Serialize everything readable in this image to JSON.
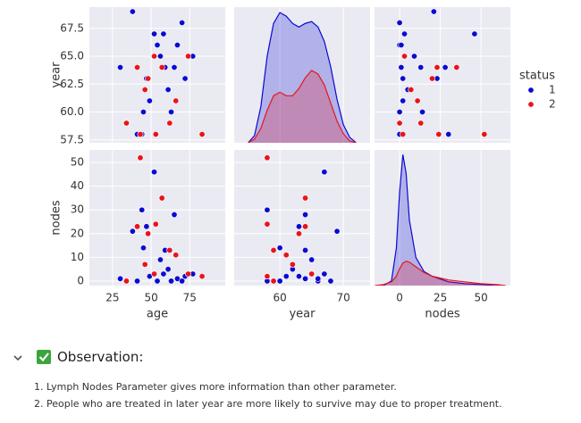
{
  "chart_data": [
    {
      "type": "scatter",
      "ylabel": "year",
      "legend_title": "status",
      "xlim": [
        10,
        98
      ],
      "ylim": [
        57.24,
        69.4
      ],
      "yticks": [
        57.5,
        {
          "value": 60,
          "label": "60.0"
        },
        62.5,
        {
          "value": 65,
          "label": "65.0"
        },
        67.5
      ],
      "series": [
        {
          "name": "1",
          "color": "#0a0ad2",
          "x": [
            30,
            34,
            38,
            41,
            45,
            47,
            49,
            52,
            54,
            56,
            58,
            61,
            63,
            65,
            67,
            70,
            72,
            77,
            44,
            59
          ],
          "values": [
            64,
            59,
            69,
            58,
            60,
            63,
            61,
            67,
            66,
            65,
            67,
            62,
            60,
            64,
            66,
            68,
            63,
            65,
            58,
            64
          ]
        },
        {
          "name": "2",
          "color": "#e8141c",
          "x": [
            34,
            41,
            43,
            46,
            48,
            52,
            53,
            57,
            62,
            66,
            74,
            83
          ],
          "values": [
            59,
            64,
            58,
            62,
            63,
            65,
            58,
            64,
            59,
            61,
            65,
            58
          ]
        }
      ]
    },
    {
      "type": "kde",
      "xlim": [
        52.8,
        74.2
      ],
      "ylim": [
        0,
        0.075
      ],
      "series": [
        {
          "name": "1",
          "color": "#0a0ad2",
          "x": [
            55,
            56,
            57,
            58,
            59,
            60,
            61,
            62,
            63,
            64,
            65,
            66,
            67,
            68,
            69,
            70,
            71,
            72
          ],
          "values": [
            0,
            0.004,
            0.02,
            0.048,
            0.066,
            0.072,
            0.07,
            0.066,
            0.064,
            0.066,
            0.067,
            0.064,
            0.056,
            0.042,
            0.024,
            0.01,
            0.003,
            0
          ]
        },
        {
          "name": "2",
          "color": "#e8141c",
          "x": [
            55,
            56,
            57,
            58,
            59,
            60,
            61,
            62,
            63,
            64,
            65,
            66,
            67,
            68,
            69,
            70,
            71,
            72
          ],
          "values": [
            0,
            0.002,
            0.008,
            0.018,
            0.026,
            0.028,
            0.026,
            0.026,
            0.03,
            0.036,
            0.04,
            0.038,
            0.032,
            0.022,
            0.012,
            0.005,
            0.001,
            0
          ]
        }
      ]
    },
    {
      "type": "scatter",
      "xlim": [
        -15.4,
        68
      ],
      "ylim": [
        57.24,
        69.4
      ],
      "series": [
        {
          "name": "1",
          "color": "#0a0ad2",
          "x": [
            1,
            0,
            21,
            0,
            14,
            23,
            2,
            46,
            0,
            9,
            3,
            5,
            0,
            28,
            1,
            0,
            2,
            3,
            30,
            13
          ],
          "values": [
            64,
            59,
            69,
            58,
            60,
            63,
            61,
            67,
            66,
            65,
            67,
            62,
            60,
            64,
            66,
            68,
            63,
            65,
            58,
            64
          ]
        },
        {
          "name": "2",
          "color": "#e8141c",
          "x": [
            0,
            23,
            52,
            7,
            20,
            3,
            24,
            35,
            13,
            11,
            3,
            2
          ],
          "values": [
            59,
            64,
            58,
            62,
            63,
            65,
            58,
            64,
            59,
            61,
            65,
            58
          ]
        }
      ]
    },
    {
      "type": "scatter",
      "xlabel": "age",
      "ylabel": "nodes",
      "xlim": [
        10,
        98
      ],
      "ylim": [
        -1.9,
        55.3
      ],
      "xticks": [
        25,
        50,
        75
      ],
      "yticks": [
        0,
        10,
        20,
        30,
        40,
        50
      ],
      "series": [
        {
          "name": "1",
          "color": "#0a0ad2",
          "x": [
            30,
            34,
            38,
            41,
            45,
            47,
            49,
            52,
            54,
            56,
            58,
            61,
            63,
            65,
            67,
            70,
            72,
            77,
            44,
            59
          ],
          "values": [
            1,
            0,
            21,
            0,
            14,
            23,
            2,
            46,
            0,
            9,
            3,
            5,
            0,
            28,
            1,
            0,
            2,
            3,
            30,
            13
          ]
        },
        {
          "name": "2",
          "color": "#e8141c",
          "x": [
            34,
            41,
            43,
            46,
            48,
            52,
            53,
            57,
            62,
            66,
            74,
            83
          ],
          "values": [
            0,
            23,
            52,
            7,
            20,
            3,
            24,
            35,
            13,
            11,
            3,
            2
          ]
        }
      ]
    },
    {
      "type": "scatter",
      "xlabel": "year",
      "xlim": [
        52.8,
        74.2
      ],
      "ylim": [
        -1.9,
        55.3
      ],
      "xticks": [
        60,
        70
      ],
      "series": [
        {
          "name": "1",
          "color": "#0a0ad2",
          "x": [
            64,
            59,
            69,
            58,
            60,
            63,
            61,
            67,
            66,
            65,
            67,
            62,
            60,
            64,
            66,
            68,
            63,
            65,
            58,
            64
          ],
          "values": [
            1,
            0,
            21,
            0,
            14,
            23,
            2,
            46,
            0,
            9,
            3,
            5,
            0,
            28,
            1,
            0,
            2,
            3,
            30,
            13
          ]
        },
        {
          "name": "2",
          "color": "#e8141c",
          "x": [
            59,
            64,
            58,
            62,
            63,
            65,
            58,
            64,
            59,
            61,
            65,
            58
          ],
          "values": [
            0,
            23,
            52,
            7,
            20,
            3,
            24,
            35,
            13,
            11,
            3,
            2
          ]
        }
      ]
    },
    {
      "type": "kde",
      "xlabel": "nodes",
      "xlim": [
        -15.4,
        68
      ],
      "ylim": [
        0,
        0.145
      ],
      "xticks": [
        0,
        25,
        50
      ],
      "series": [
        {
          "name": "1",
          "color": "#0a0ad2",
          "x": [
            -15,
            -10,
            -5,
            -2,
            0,
            2,
            4,
            6,
            10,
            15,
            20,
            25,
            30,
            40,
            50,
            60,
            65
          ],
          "values": [
            0,
            0,
            0.005,
            0.04,
            0.1,
            0.14,
            0.12,
            0.07,
            0.03,
            0.015,
            0.01,
            0.007,
            0.004,
            0.002,
            0.001,
            0,
            0
          ]
        },
        {
          "name": "2",
          "color": "#e8141c",
          "x": [
            -15,
            -10,
            -5,
            -2,
            0,
            2,
            4,
            6,
            10,
            15,
            20,
            25,
            30,
            40,
            50,
            60,
            65
          ],
          "values": [
            0,
            0.001,
            0.004,
            0.01,
            0.018,
            0.024,
            0.026,
            0.025,
            0.02,
            0.014,
            0.01,
            0.008,
            0.006,
            0.004,
            0.002,
            0.001,
            0
          ]
        }
      ]
    }
  ],
  "observation": {
    "title": "Observation:",
    "items": [
      "1. Lymph Nodes Parameter gives more information than other parameter.",
      "2. People who are treated in later year are more likely to survive may due to proper treatment."
    ]
  }
}
